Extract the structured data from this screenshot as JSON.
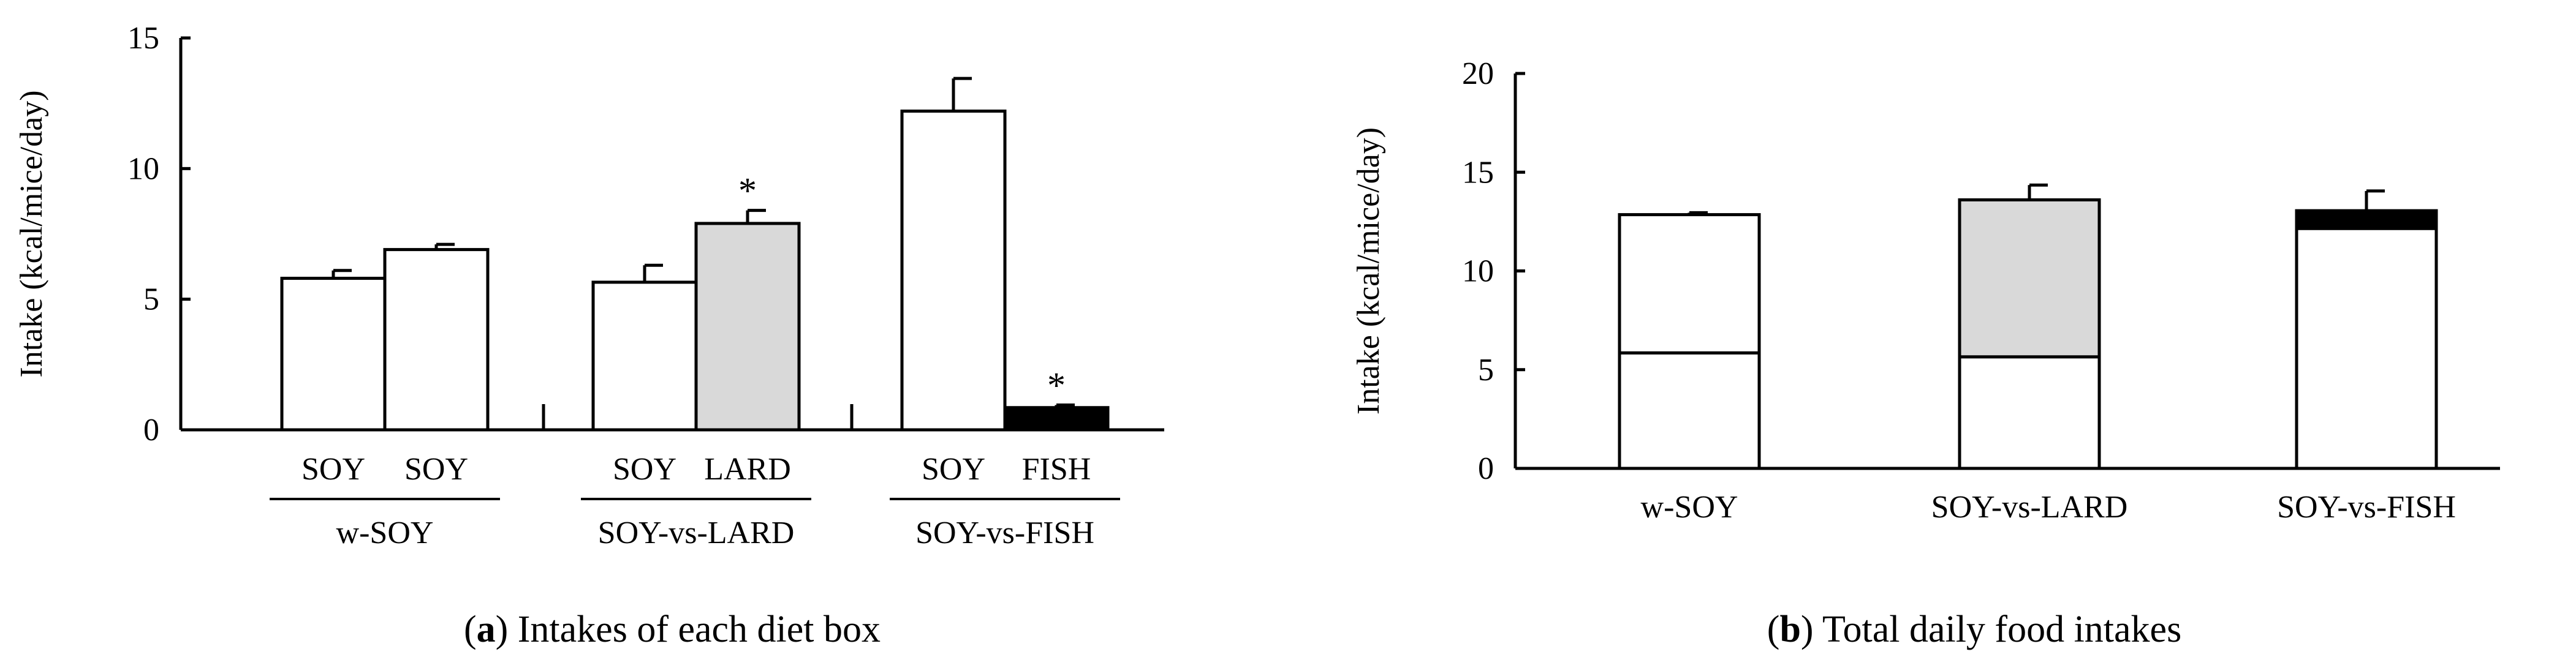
{
  "colors": {
    "soy": "#ffffff",
    "lard": "#d9d9d9",
    "fish": "#000000",
    "stroke": "#000000"
  },
  "chart_data": [
    {
      "type": "bar",
      "caption_label": "a",
      "caption_text": ") Intakes of each diet box",
      "ylabel": "Intake (kcal/mice/day)",
      "ylim": [
        0,
        15
      ],
      "yticks": [
        "0",
        "5",
        "10",
        "15"
      ],
      "groups": [
        {
          "name": "w-SOY",
          "bars": [
            {
              "label": "SOY",
              "value": 5.8,
              "err": 0.3,
              "fill": "soy",
              "star": ""
            },
            {
              "label": "SOY",
              "value": 6.9,
              "err": 0.2,
              "fill": "soy",
              "star": ""
            }
          ]
        },
        {
          "name": "SOY-vs-LARD",
          "bars": [
            {
              "label": "SOY",
              "value": 5.65,
              "err": 0.65,
              "fill": "soy",
              "star": ""
            },
            {
              "label": "LARD",
              "value": 7.9,
              "err": 0.5,
              "fill": "lard",
              "star": "*"
            }
          ]
        },
        {
          "name": "SOY-vs-FISH",
          "bars": [
            {
              "label": "SOY",
              "value": 12.2,
              "err": 1.25,
              "fill": "soy",
              "star": ""
            },
            {
              "label": "FISH",
              "value": 0.85,
              "err": 0.1,
              "fill": "fish",
              "star": "*"
            }
          ]
        }
      ]
    },
    {
      "type": "bar",
      "stacked": true,
      "caption_label": "b",
      "caption_text": ") Total daily food intakes",
      "ylabel": "Intake (kcal/mice/day)",
      "ylim": [
        0,
        20
      ],
      "yticks": [
        "0",
        "5",
        "10",
        "15",
        "20"
      ],
      "categories": [
        "w-SOY",
        "SOY-vs-LARD",
        "SOY-vs-FISH"
      ],
      "bars": [
        {
          "segments": [
            {
              "value": 5.85,
              "fill": "soy"
            },
            {
              "value": 7.0,
              "fill": "soy"
            }
          ],
          "err": 0.1
        },
        {
          "segments": [
            {
              "value": 5.65,
              "fill": "soy"
            },
            {
              "value": 7.95,
              "fill": "lard"
            }
          ],
          "err": 0.75
        },
        {
          "segments": [
            {
              "value": 12.15,
              "fill": "soy"
            },
            {
              "value": 0.9,
              "fill": "fish"
            }
          ],
          "err": 1.0
        }
      ]
    }
  ]
}
